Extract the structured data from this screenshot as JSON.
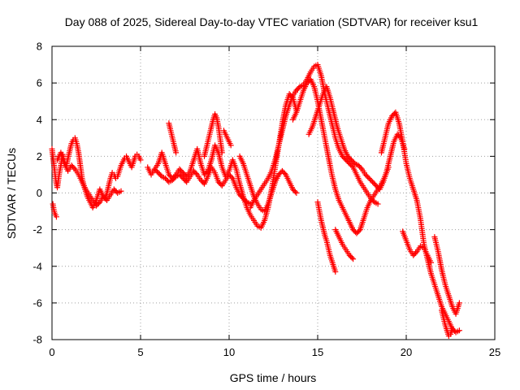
{
  "chart_data": {
    "type": "scatter",
    "title": "Day 088 of 2025, Sidereal Day-to-day VTEC variation (SDTVAR) for receiver ksu1",
    "xlabel": "GPS time / hours",
    "ylabel": "SDTVAR / TECUs",
    "xlim": [
      0,
      25
    ],
    "ylim": [
      -8,
      8
    ],
    "xticks": [
      0,
      5,
      10,
      15,
      20,
      25
    ],
    "yticks": [
      -8,
      -6,
      -4,
      -2,
      0,
      2,
      4,
      6,
      8
    ],
    "grid": true,
    "marker": "plus",
    "color": "#ff0000",
    "series": [
      {
        "x": [
          0.0,
          0.05,
          0.1,
          0.15,
          0.2,
          0.25,
          0.3,
          0.4,
          0.5,
          0.6,
          0.7,
          0.8,
          0.9,
          1.0,
          1.1,
          1.2,
          1.3,
          1.4,
          1.5,
          1.6,
          1.7,
          1.8,
          1.9,
          2.0,
          2.1,
          2.2,
          2.3,
          2.4,
          2.5,
          2.6,
          2.7,
          2.8,
          2.9,
          3.0,
          3.1,
          3.2,
          3.3,
          3.4,
          3.5,
          3.6,
          3.7,
          3.8,
          3.9,
          4.0,
          4.1,
          4.2,
          4.3,
          4.4,
          4.5,
          4.6,
          4.7,
          4.8,
          4.9,
          5.0
        ],
        "y": [
          2.4,
          2.0,
          1.6,
          1.2,
          0.8,
          0.5,
          0.3,
          1.0,
          1.5,
          2.1,
          1.7,
          1.4,
          1.9,
          2.3,
          2.7,
          2.9,
          3.0,
          2.7,
          2.2,
          1.5,
          0.8,
          0.4,
          0.1,
          -0.2,
          -0.4,
          -0.6,
          -0.8,
          -0.6,
          -0.4,
          -0.1,
          0.2,
          0.0,
          -0.2,
          -0.3,
          0.0,
          0.4,
          0.8,
          1.1,
          1.0,
          0.8,
          0.9,
          1.2,
          1.5,
          1.7,
          1.9,
          2.0,
          1.8,
          1.6,
          1.4,
          1.7,
          2.0,
          2.1,
          2.0,
          1.8
        ]
      },
      {
        "x": [
          0.05,
          0.1,
          0.15,
          0.2,
          0.25
        ],
        "y": [
          -0.6,
          -0.9,
          -1.1,
          -1.2,
          -1.3
        ]
      },
      {
        "x": [
          0.3,
          0.5,
          0.7,
          0.9,
          1.1,
          1.3,
          1.5,
          1.7,
          1.9,
          2.1,
          2.3,
          2.5,
          2.7,
          2.9,
          3.1,
          3.3,
          3.5,
          3.7,
          3.9
        ],
        "y": [
          1.8,
          2.2,
          1.6,
          1.2,
          1.5,
          1.3,
          1.0,
          0.6,
          0.2,
          -0.1,
          -0.4,
          -0.7,
          -0.5,
          -0.2,
          -0.4,
          -0.1,
          0.2,
          0.0,
          0.1
        ]
      },
      {
        "x": [
          5.4,
          5.6,
          5.8,
          6.0,
          6.2,
          6.4,
          6.6,
          6.8,
          7.0,
          7.2,
          7.4,
          7.6,
          7.8,
          8.0,
          8.2,
          8.4,
          8.6,
          8.8,
          9.0,
          9.2,
          9.4,
          9.6,
          9.8,
          10.0,
          10.2,
          10.4,
          10.6,
          10.8,
          11.0,
          11.2,
          11.4,
          11.6,
          11.8,
          12.0,
          12.2,
          12.4,
          12.6,
          12.8,
          13.0,
          13.2,
          13.4,
          13.6,
          13.8
        ],
        "y": [
          1.4,
          1.0,
          1.3,
          1.6,
          2.2,
          1.6,
          1.0,
          0.8,
          1.0,
          1.3,
          1.1,
          0.9,
          1.2,
          1.8,
          2.4,
          1.6,
          1.0,
          1.2,
          1.8,
          2.6,
          2.2,
          1.4,
          0.9,
          1.2,
          1.8,
          1.3,
          0.5,
          -0.2,
          -0.8,
          -1.2,
          -1.5,
          -1.8,
          -1.9,
          -1.5,
          -0.8,
          0.2,
          1.4,
          2.6,
          3.8,
          4.8,
          5.4,
          5.2,
          4.5
        ]
      },
      {
        "x": [
          5.8,
          6.0,
          6.2,
          6.4,
          6.6,
          6.8,
          7.0,
          7.2,
          7.4,
          7.6,
          7.8,
          8.0,
          8.2,
          8.4,
          8.6,
          8.8,
          9.0,
          9.2,
          9.4,
          9.6,
          9.8,
          10.0,
          10.2,
          10.4,
          10.6,
          10.8,
          11.0,
          11.2
        ],
        "y": [
          1.3,
          1.1,
          0.9,
          0.8,
          0.6,
          0.7,
          0.9,
          1.0,
          0.8,
          0.6,
          0.9,
          1.2,
          1.0,
          0.7,
          0.5,
          0.9,
          1.4,
          1.1,
          0.6,
          0.4,
          0.7,
          1.0,
          0.8,
          0.3,
          -0.1,
          -0.3,
          -0.5,
          -0.6
        ]
      },
      {
        "x": [
          6.6,
          6.7,
          6.8,
          6.9,
          7.0
        ],
        "y": [
          3.8,
          3.4,
          3.0,
          2.6,
          2.2
        ]
      },
      {
        "x": [
          8.6,
          8.7,
          8.8,
          8.9,
          9.0,
          9.1,
          9.2,
          9.3,
          9.4,
          9.5,
          9.6
        ],
        "y": [
          2.0,
          2.4,
          2.8,
          3.2,
          3.6,
          4.0,
          4.3,
          4.1,
          3.6,
          2.9,
          2.2
        ]
      },
      {
        "x": [
          9.7,
          9.8,
          9.9,
          10.0,
          10.1
        ],
        "y": [
          3.4,
          3.2,
          3.0,
          2.8,
          2.6
        ]
      },
      {
        "x": [
          10.6,
          10.8,
          11.0,
          11.2,
          11.4,
          11.6,
          11.8,
          12.0,
          12.2,
          12.4,
          12.6,
          12.8,
          13.0,
          13.2,
          13.4,
          13.6,
          13.8
        ],
        "y": [
          2.0,
          1.6,
          1.0,
          0.4,
          -0.2,
          -0.6,
          -0.9,
          -1.0,
          -0.6,
          0.0,
          0.6,
          1.0,
          1.2,
          1.0,
          0.6,
          0.2,
          0.0
        ]
      },
      {
        "x": [
          11.2,
          11.4,
          11.6,
          11.8,
          12.0,
          12.2,
          12.4,
          12.6,
          12.8,
          13.0,
          13.2,
          13.4,
          13.6,
          13.8,
          14.0,
          14.2,
          14.4,
          14.6,
          14.8,
          15.0,
          15.2,
          15.4,
          15.6,
          15.8,
          16.0,
          16.2,
          16.4,
          16.6,
          16.8,
          17.0,
          17.2,
          17.4,
          17.6,
          17.8,
          18.0,
          18.2,
          18.4
        ],
        "y": [
          -0.8,
          -0.4,
          -0.1,
          0.2,
          0.5,
          0.8,
          1.2,
          1.8,
          2.6,
          3.4,
          4.2,
          4.8,
          5.3,
          5.6,
          5.8,
          5.9,
          6.2,
          6.6,
          6.9,
          7.0,
          6.4,
          5.4,
          4.6,
          3.8,
          3.0,
          2.4,
          2.0,
          1.8,
          1.6,
          1.4,
          1.0,
          0.6,
          0.3,
          0.0,
          -0.3,
          -0.5,
          -0.6
        ]
      },
      {
        "x": [
          13.6,
          13.8,
          14.0,
          14.2,
          14.4,
          14.6,
          14.8,
          15.0,
          15.2,
          15.4,
          15.6,
          15.8,
          16.0,
          16.2,
          16.4,
          16.6,
          16.8,
          17.0,
          17.2,
          17.4,
          17.6,
          17.8,
          18.0,
          18.2,
          18.4,
          18.6,
          18.8,
          19.0
        ],
        "y": [
          4.0,
          4.4,
          5.0,
          5.6,
          6.0,
          6.2,
          5.8,
          5.0,
          4.0,
          3.0,
          2.0,
          1.0,
          0.2,
          -0.4,
          -0.8,
          -1.2,
          -1.6,
          -2.0,
          -2.2,
          -2.0,
          -1.4,
          -0.8,
          -0.4,
          -0.1,
          0.2,
          0.5,
          0.9,
          1.4
        ]
      },
      {
        "x": [
          14.5,
          14.7,
          14.9,
          15.1,
          15.3,
          15.5,
          15.7,
          15.9,
          16.1,
          16.3,
          16.5,
          16.7,
          16.9,
          17.1,
          17.3,
          17.5,
          17.7,
          17.9,
          18.1,
          18.3,
          18.5,
          18.7,
          18.9,
          19.1,
          19.3,
          19.5,
          19.7,
          19.9
        ],
        "y": [
          3.2,
          3.6,
          4.2,
          4.8,
          5.4,
          5.8,
          5.2,
          4.4,
          3.6,
          3.0,
          2.4,
          2.0,
          1.8,
          1.6,
          1.5,
          1.3,
          1.0,
          0.8,
          0.6,
          0.4,
          0.2,
          0.6,
          1.2,
          2.0,
          2.8,
          3.2,
          3.0,
          2.4
        ]
      },
      {
        "x": [
          15.0,
          15.1,
          15.2,
          15.3,
          15.4,
          15.5,
          15.6,
          15.7,
          15.8,
          15.9,
          16.0
        ],
        "y": [
          -0.5,
          -1.0,
          -1.5,
          -1.9,
          -2.3,
          -2.6,
          -3.0,
          -3.4,
          -3.7,
          -4.0,
          -4.3
        ]
      },
      {
        "x": [
          16.0,
          16.2,
          16.4,
          16.6,
          16.8,
          17.0
        ],
        "y": [
          -2.0,
          -2.4,
          -2.8,
          -3.1,
          -3.4,
          -3.6
        ]
      },
      {
        "x": [
          18.6,
          18.8,
          19.0,
          19.2,
          19.4,
          19.6,
          19.8,
          20.0,
          20.2,
          20.4,
          20.6,
          20.8,
          21.0,
          21.2,
          21.4,
          21.6,
          21.8,
          22.0,
          22.2,
          22.4,
          22.6,
          22.8,
          23.0
        ],
        "y": [
          2.2,
          3.0,
          3.8,
          4.2,
          4.4,
          3.8,
          2.8,
          1.6,
          0.8,
          0.2,
          -0.4,
          -1.4,
          -2.8,
          -3.6,
          -4.4,
          -5.0,
          -5.6,
          -6.2,
          -6.6,
          -7.0,
          -7.4,
          -7.6,
          -7.5
        ]
      },
      {
        "x": [
          19.8,
          20.0,
          20.2,
          20.4,
          20.6,
          20.8,
          21.0,
          21.2,
          21.4
        ],
        "y": [
          -2.1,
          -2.6,
          -3.1,
          -3.4,
          -3.2,
          -2.9,
          -3.0,
          -3.4,
          -3.8
        ]
      },
      {
        "x": [
          21.6,
          21.8,
          22.0,
          22.2,
          22.4,
          22.6,
          22.8,
          23.0
        ],
        "y": [
          -2.4,
          -3.2,
          -4.2,
          -5.0,
          -5.6,
          -6.2,
          -6.6,
          -6.0
        ]
      },
      {
        "x": [
          22.0,
          22.1,
          22.2,
          22.3,
          22.4,
          22.5,
          22.6
        ],
        "y": [
          -6.4,
          -6.8,
          -7.2,
          -7.5,
          -7.8,
          -7.7,
          -7.4
        ]
      }
    ]
  }
}
